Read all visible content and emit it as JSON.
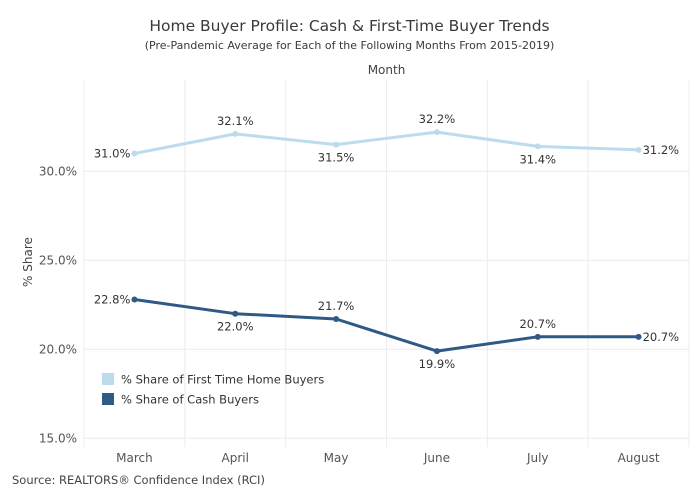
{
  "chart_data": {
    "type": "line",
    "title": "Home Buyer Profile: Cash & First-Time Buyer Trends",
    "subtitle": "(Pre-Pandemic Average for Each of the Following Months From 2015-2019)",
    "xlabel": "Month",
    "ylabel": "% Share",
    "categories": [
      "March",
      "April",
      "May",
      "June",
      "July",
      "August"
    ],
    "ylim": [
      15.0,
      33.2
    ],
    "yticks": [
      "15.0%",
      "20.0%",
      "25.0%",
      "30.0%"
    ],
    "ytick_values": [
      15,
      20,
      25,
      30
    ],
    "grid": true,
    "legend_position": "bottom-left",
    "series": [
      {
        "name": "% Share of First Time Home Buyers",
        "values": [
          31.0,
          32.1,
          31.5,
          32.2,
          31.4,
          31.2
        ],
        "labels": [
          "31.0%",
          "32.1%",
          "31.5%",
          "32.2%",
          "31.4%",
          "31.2%"
        ],
        "color": "#bcdcee"
      },
      {
        "name": "% Share of Cash Buyers",
        "values": [
          22.8,
          22.0,
          21.7,
          19.9,
          20.7,
          20.7
        ],
        "labels": [
          "22.8%",
          "22.0%",
          "21.7%",
          "19.9%",
          "20.7%",
          "20.7%"
        ],
        "color": "#2f5a85"
      }
    ]
  },
  "source": "Source: REALTORS® Confidence Index (RCI)"
}
